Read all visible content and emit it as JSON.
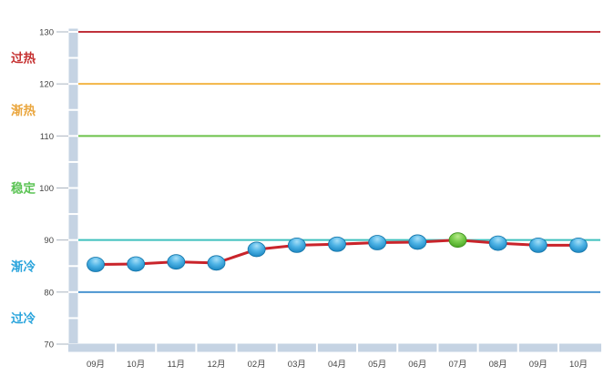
{
  "chart_data": {
    "type": "line",
    "title": "",
    "categories": [
      "09月",
      "10月",
      "11月",
      "12月",
      "02月",
      "03月",
      "04月",
      "05月",
      "06月",
      "07月",
      "08月",
      "09月",
      "10月"
    ],
    "values": [
      85.3,
      85.4,
      85.8,
      85.6,
      88.2,
      89.0,
      89.2,
      89.5,
      89.6,
      90.0,
      89.4,
      89.0,
      89.0
    ],
    "highlight_index": 9,
    "highlight_category": "07月",
    "ylim": [
      70,
      130
    ],
    "y_ticks": [
      130,
      120,
      110,
      100,
      90,
      80,
      70
    ],
    "grid": false,
    "legend": "none",
    "line_color": "#c9242b",
    "marker_colors": {
      "normal_top": "#a8e0f8",
      "normal_mid": "#4fb4e6",
      "normal_bottom": "#1581bd",
      "normal_stroke": "#1172a6",
      "highlight_top": "#b9e98c",
      "highlight_mid": "#79cd4d",
      "highlight_bottom": "#44a01f",
      "highlight_stroke": "#3c8f1d"
    },
    "zones": [
      {
        "label": "过热",
        "name": "overheated",
        "line_value": 130,
        "line_color": "#c0323b",
        "label_color": "#c53030"
      },
      {
        "label": "渐热",
        "name": "warming",
        "line_value": 120,
        "line_color": "#f3b545",
        "label_color": "#eaa63e"
      },
      {
        "label": "稳定",
        "name": "stable",
        "line_value": 110,
        "line_color": "#6cc24a",
        "label_color": "#5dc456"
      },
      {
        "label": "渐冷",
        "name": "cooling",
        "line_value": 90,
        "line_color": "#3fc0bd",
        "label_color": "#2aa4dc"
      },
      {
        "label": "过冷",
        "name": "overcooled",
        "line_value": 80,
        "line_color": "#4a94d0",
        "label_color": "#2aa4dc"
      }
    ],
    "axis_bar_color": "#c5d3e3",
    "tick_color": "#aab4c0",
    "tick_label_color": "#444444",
    "background": "#ffffff"
  }
}
